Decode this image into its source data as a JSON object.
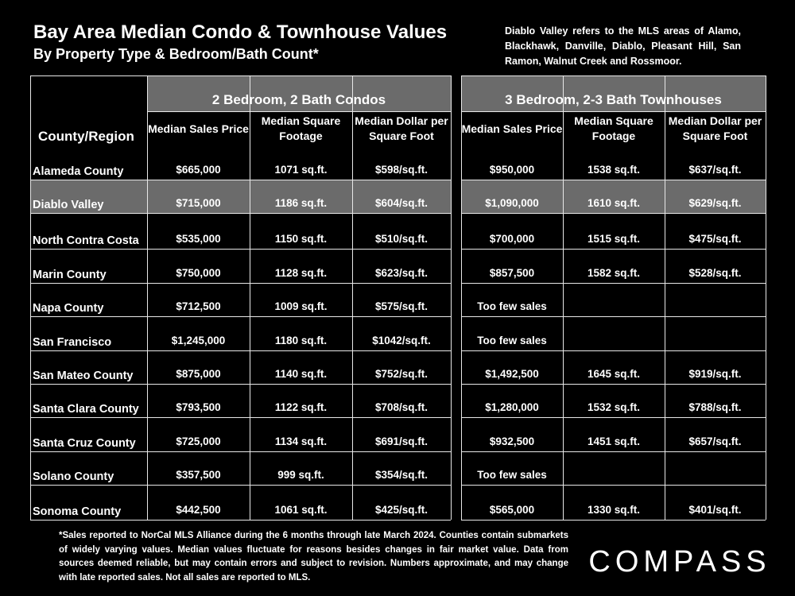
{
  "header": {
    "title": "Bay Area Median Condo & Townhouse Values",
    "subtitle": "By Property Type & Bedroom/Bath Count*",
    "note": "Diablo Valley refers to the MLS areas of Alamo, Blackhawk, Danville, Diablo, Pleasant Hill, San Ramon, Walnut Creek and Rossmoor."
  },
  "chart_data": {
    "type": "table",
    "row_header_label": "County/Region",
    "groups": [
      {
        "label": "2 Bedroom, 2 Bath Condos",
        "columns": [
          "Median Sales Price",
          "Median Square Footage",
          "Median Dollar per Square Foot"
        ]
      },
      {
        "label": "3 Bedroom, 2-3 Bath Townhouses",
        "columns": [
          "Median Sales Price",
          "Median Square Footage",
          "Median Dollar per Square Foot"
        ]
      }
    ],
    "rows": [
      {
        "region": "Alameda County",
        "condo": [
          "$665,000",
          "1071 sq.ft.",
          "$598/sq.ft."
        ],
        "townhouse": [
          "$950,000",
          "1538 sq.ft.",
          "$637/sq.ft."
        ]
      },
      {
        "region": "Diablo Valley",
        "highlight": true,
        "condo": [
          "$715,000",
          "1186 sq.ft.",
          "$604/sq.ft."
        ],
        "townhouse": [
          "$1,090,000",
          "1610 sq.ft.",
          "$629/sq.ft."
        ]
      },
      {
        "region": "North Contra Costa",
        "condo": [
          "$535,000",
          "1150 sq.ft.",
          "$510/sq.ft."
        ],
        "townhouse": [
          "$700,000",
          "1515 sq.ft.",
          "$475/sq.ft."
        ]
      },
      {
        "region": "Marin County",
        "condo": [
          "$750,000",
          "1128 sq.ft.",
          "$623/sq.ft."
        ],
        "townhouse": [
          "$857,500",
          "1582 sq.ft.",
          "$528/sq.ft."
        ]
      },
      {
        "region": "Napa County",
        "condo": [
          "$712,500",
          "1009 sq.ft.",
          "$575/sq.ft."
        ],
        "townhouse": [
          "Too few sales",
          "",
          ""
        ]
      },
      {
        "region": "San Francisco",
        "condo": [
          "$1,245,000",
          "1180 sq.ft.",
          "$1042/sq.ft."
        ],
        "townhouse": [
          "Too few sales",
          "",
          ""
        ]
      },
      {
        "region": "San Mateo County",
        "condo": [
          "$875,000",
          "1140 sq.ft.",
          "$752/sq.ft."
        ],
        "townhouse": [
          "$1,492,500",
          "1645 sq.ft.",
          "$919/sq.ft."
        ]
      },
      {
        "region": "Santa Clara County",
        "condo": [
          "$793,500",
          "1122 sq.ft.",
          "$708/sq.ft."
        ],
        "townhouse": [
          "$1,280,000",
          "1532 sq.ft.",
          "$788/sq.ft."
        ]
      },
      {
        "region": "Santa Cruz County",
        "condo": [
          "$725,000",
          "1134 sq.ft.",
          "$691/sq.ft."
        ],
        "townhouse": [
          "$932,500",
          "1451 sq.ft.",
          "$657/sq.ft."
        ]
      },
      {
        "region": "Solano County",
        "condo": [
          "$357,500",
          "999 sq.ft.",
          "$354/sq.ft."
        ],
        "townhouse": [
          "Too few sales",
          "",
          ""
        ]
      },
      {
        "region": "Sonoma County",
        "condo": [
          "$442,500",
          "1061 sq.ft.",
          "$425/sq.ft."
        ],
        "townhouse": [
          "$565,000",
          "1330 sq.ft.",
          "$401/sq.ft."
        ]
      }
    ]
  },
  "footnote": "*Sales reported to NorCal MLS Alliance during the 6 months through late March 2024. Counties contain submarkets of widely varying values. Median values fluctuate for reasons besides changes in fair market value. Data from sources deemed reliable, but may contain errors and subject to revision. Numbers approximate, and may change with late reported sales. Not all sales are reported to MLS.",
  "logo_text": "COMPASS",
  "colors": {
    "background": "#000000",
    "header_fill": "#6b6b6b",
    "highlight_fill": "#6b6b6b",
    "text": "#ffffff",
    "rule": "#e8e8e8"
  }
}
